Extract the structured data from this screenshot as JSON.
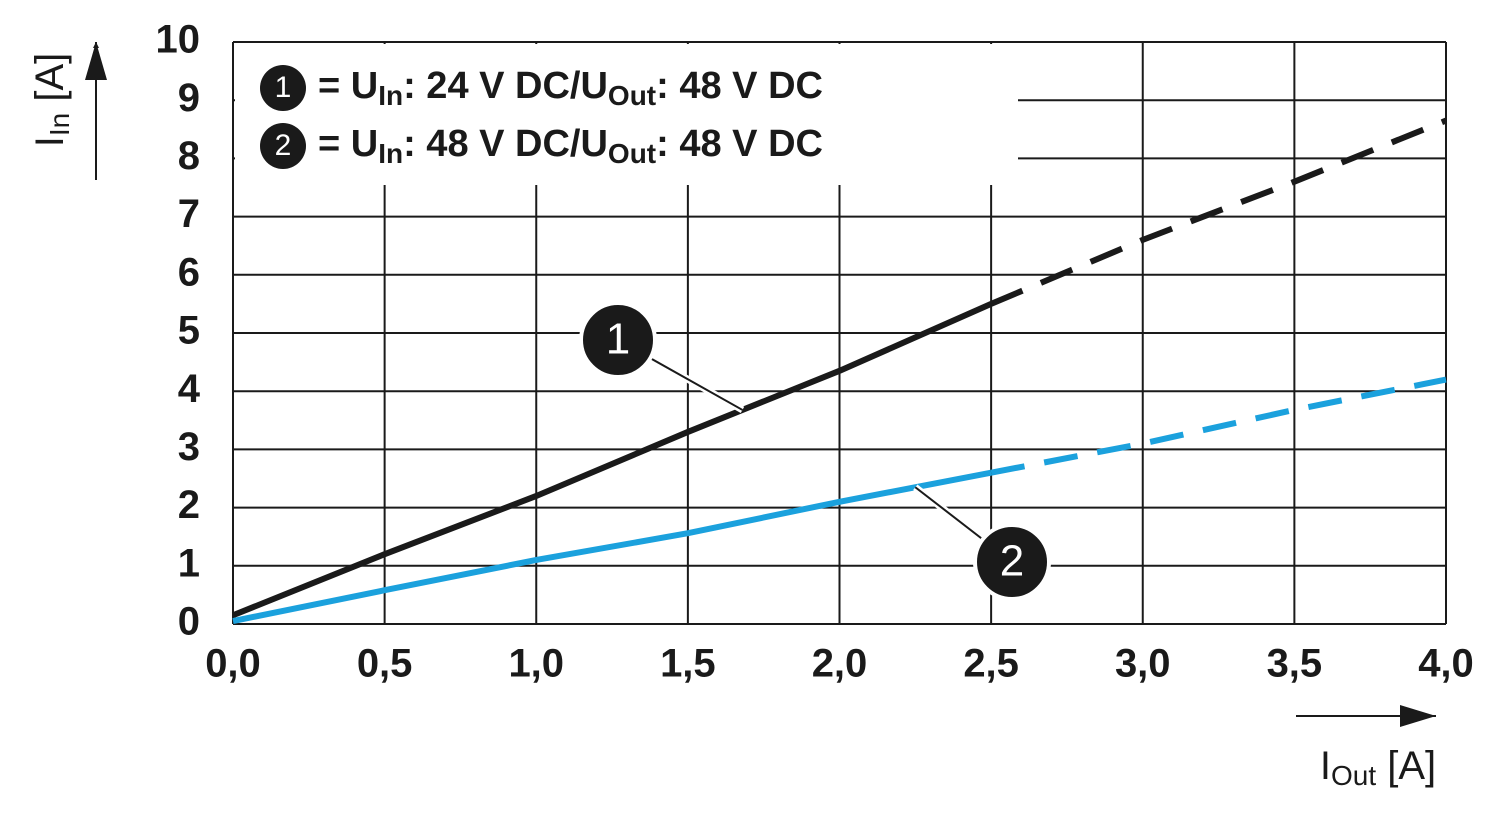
{
  "chart_data": {
    "type": "line",
    "x": [
      0,
      0.5,
      1.0,
      1.5,
      2.0,
      2.5,
      3.0,
      3.5,
      4.0
    ],
    "series": [
      {
        "name": "1",
        "color": "#1a1a1a",
        "dashed_after": 2.5,
        "values": [
          0.15,
          1.2,
          2.2,
          3.3,
          4.35,
          5.5,
          6.6,
          7.6,
          8.65
        ],
        "legend_text": [
          "= U",
          "In",
          ": 24 V DC/U",
          "Out",
          ": 48 V DC"
        ]
      },
      {
        "name": "2",
        "color": "#1ba1dd",
        "dashed_after": 2.5,
        "values": [
          0.05,
          0.58,
          1.1,
          1.56,
          2.1,
          2.6,
          3.1,
          3.68,
          4.2
        ],
        "legend_text": [
          "= U",
          "In",
          ": 48 V DC/U",
          "Out",
          ": 48 V DC"
        ]
      }
    ],
    "xlabel": [
      "I",
      "Out",
      " [A]"
    ],
    "ylabel": [
      "I",
      "In",
      " [A]"
    ],
    "xlim": [
      0,
      4.0
    ],
    "ylim": [
      0,
      10
    ],
    "xticks": [
      {
        "value": 0,
        "label": "0,0"
      },
      {
        "value": 0.5,
        "label": "0,5"
      },
      {
        "value": 1.0,
        "label": "1,0"
      },
      {
        "value": 1.5,
        "label": "1,5"
      },
      {
        "value": 2.0,
        "label": "2,0"
      },
      {
        "value": 2.5,
        "label": "2,5"
      },
      {
        "value": 3.0,
        "label": "3,0"
      },
      {
        "value": 3.5,
        "label": "3,5"
      },
      {
        "value": 4.0,
        "label": "4,0"
      }
    ],
    "yticks": [
      0,
      1,
      2,
      3,
      4,
      5,
      6,
      7,
      8,
      9,
      10
    ],
    "grid": true
  }
}
